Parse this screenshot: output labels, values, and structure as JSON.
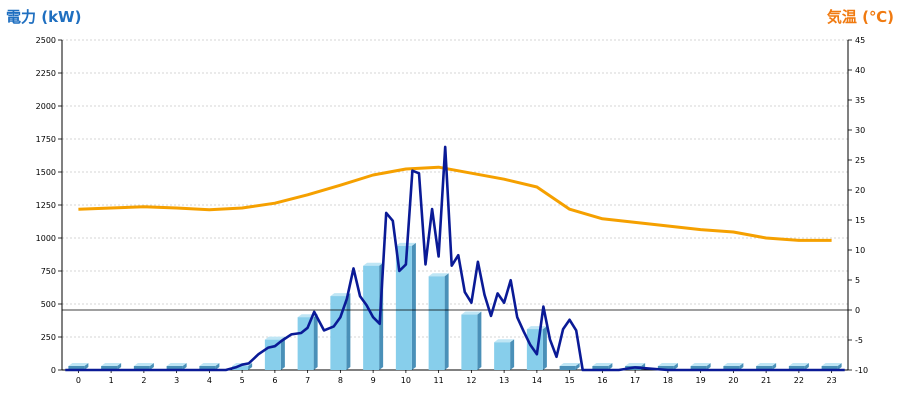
{
  "chart_data": {
    "type": "bar",
    "left_axis_label": "電力 (kW)",
    "right_axis_label": "気温 (℃)",
    "left_ylim": [
      0,
      2500
    ],
    "left_ticks": [
      0,
      250,
      500,
      750,
      1000,
      1250,
      1500,
      1750,
      2000,
      2250,
      2500
    ],
    "right_ylim": [
      -10,
      45
    ],
    "right_ticks": [
      -10,
      -5,
      0,
      5,
      10,
      15,
      20,
      25,
      30,
      35,
      40,
      45
    ],
    "categories": [
      "0",
      "1",
      "2",
      "3",
      "4",
      "5",
      "6",
      "7",
      "8",
      "9",
      "10",
      "11",
      "12",
      "13",
      "14",
      "15",
      "16",
      "17",
      "18",
      "19",
      "20",
      "21",
      "22",
      "23"
    ],
    "grid": true,
    "colors": {
      "bar": "#87ceeb",
      "bar_side": "#4a90b8",
      "bar_top": "#bfe6f5",
      "power_line": "#0a1a96",
      "temperature_line": "#f5a000",
      "zero_line": "#000000"
    },
    "series": [
      {
        "type": "bar",
        "values": [
          0,
          0,
          0,
          0,
          0,
          30,
          230,
          400,
          560,
          790,
          940,
          710,
          420,
          210,
          310,
          0,
          0,
          0,
          0,
          0,
          0,
          0,
          0,
          0
        ]
      },
      {
        "type": "line",
        "axis": "left",
        "x": [
          -0.4,
          0,
          0.5,
          1,
          1.5,
          2,
          2.5,
          3,
          3.5,
          4,
          4.5,
          4.8,
          5,
          5.2,
          5.5,
          5.8,
          6,
          6.2,
          6.5,
          6.8,
          7,
          7.2,
          7.5,
          7.8,
          8,
          8.2,
          8.4,
          8.6,
          8.8,
          9,
          9.2,
          9.4,
          9.6,
          9.8,
          10,
          10.2,
          10.4,
          10.6,
          10.8,
          11,
          11.2,
          11.4,
          11.6,
          11.8,
          12,
          12.2,
          12.4,
          12.6,
          12.8,
          13,
          13.2,
          13.4,
          13.6,
          13.8,
          14,
          14.2,
          14.4,
          14.6,
          14.8,
          15,
          15.2,
          15.4,
          15.6,
          15.8,
          16,
          16.5,
          17,
          18,
          19,
          20,
          21,
          22,
          23,
          23.4
        ],
        "values": [
          0,
          0,
          0,
          0,
          0,
          0,
          0,
          0,
          0,
          0,
          0,
          20,
          40,
          50,
          120,
          170,
          180,
          220,
          270,
          280,
          320,
          440,
          300,
          330,
          400,
          540,
          770,
          560,
          490,
          400,
          350,
          1190,
          1130,
          750,
          800,
          1510,
          1490,
          800,
          1220,
          860,
          1690,
          790,
          870,
          590,
          510,
          820,
          570,
          410,
          580,
          510,
          680,
          400,
          290,
          190,
          120,
          480,
          230,
          100,
          310,
          380,
          300,
          0,
          0,
          0,
          0,
          0,
          20,
          0,
          0,
          0,
          0,
          0,
          0,
          0
        ],
        "values_note": ""
      },
      {
        "type": "line",
        "axis": "right",
        "x": [
          0,
          1,
          2,
          3,
          4,
          5,
          6,
          7,
          8,
          9,
          10,
          11,
          12,
          13,
          14,
          15,
          16,
          17,
          18,
          19,
          20,
          21,
          22,
          23
        ],
        "values": [
          16.8,
          17.0,
          17.2,
          17.0,
          16.7,
          17.0,
          17.8,
          19.2,
          20.8,
          22.5,
          23.5,
          23.8,
          22.8,
          21.8,
          20.5,
          16.8,
          15.2,
          14.6,
          14.0,
          13.4,
          13.0,
          12.0,
          11.6,
          11.6
        ]
      }
    ]
  }
}
